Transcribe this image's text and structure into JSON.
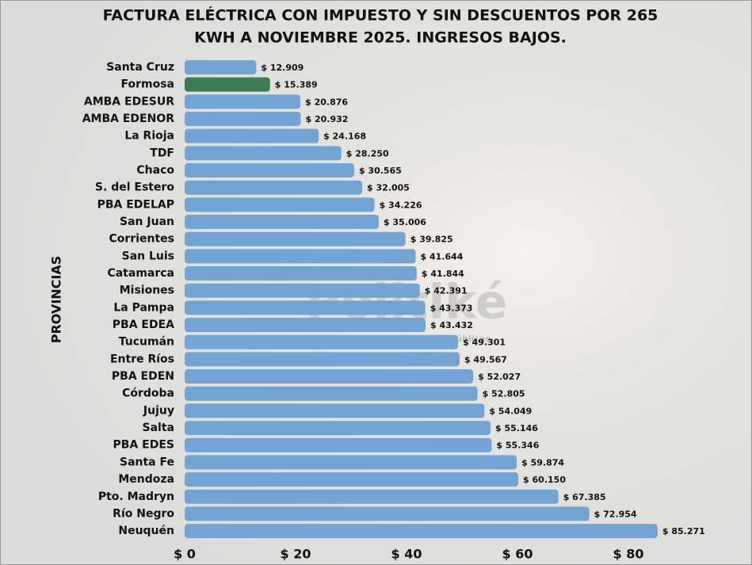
{
  "chart_data": {
    "type": "hbar",
    "title": [
      "FACTURA ELÉCTRICA CON IMPUESTO Y SIN DESCUENTOS POR 265",
      "KWH A NOVIEMBRE 2025. INGRESOS BAJOS."
    ],
    "y_label": "PROVINCIAS",
    "watermark": [
      "Politiké",
      "Observatorio de políticas públicas"
    ],
    "categories": [
      "Santa Cruz",
      "Formosa",
      "AMBA EDESUR",
      "AMBA EDENOR",
      "La Rioja",
      "TDF",
      "Chaco",
      "S. del Estero",
      "PBA EDELAP",
      "San Juan",
      "Corrientes",
      "San Luis",
      "Catamarca",
      "Misiones",
      "La Pampa",
      "PBA EDEA",
      "Tucumán",
      "Entre Ríos",
      "PBA EDEN",
      "Córdoba",
      "Jujuy",
      "Salta",
      "PBA EDES",
      "Santa Fe",
      "Mendoza",
      "Pto. Madryn",
      "Río Negro",
      "Neuquén"
    ],
    "values": [
      12.909,
      15.389,
      20.876,
      20.932,
      24.168,
      28.25,
      30.565,
      32.005,
      34.226,
      35.006,
      39.825,
      41.644,
      41.844,
      42.391,
      43.373,
      43.432,
      49.301,
      49.567,
      52.027,
      52.805,
      54.049,
      55.146,
      55.346,
      59.874,
      60.15,
      67.385,
      72.954,
      85.271
    ],
    "value_labels": [
      "$ 12.909",
      "$ 15.389",
      "$ 20.876",
      "$ 20.932",
      "$ 24.168",
      "$ 28.250",
      "$ 30.565",
      "$ 32.005",
      "$ 34.226",
      "$ 35.006",
      "$ 39.825",
      "$ 41.644",
      "$ 41.844",
      "$ 42.391",
      "$ 43.373",
      "$ 43.432",
      "$ 49.301",
      "$ 49.567",
      "$ 52.027",
      "$ 52.805",
      "$ 54.049",
      "$ 55.146",
      "$ 55.346",
      "$ 59.874",
      "$ 60.150",
      "$ 67.385",
      "$ 72.954",
      "$ 85.271"
    ],
    "colors": [
      "#74a4d4",
      "#3f7a57",
      "#74a4d4",
      "#74a4d4",
      "#74a4d4",
      "#74a4d4",
      "#74a4d4",
      "#74a4d4",
      "#74a4d4",
      "#74a4d4",
      "#74a4d4",
      "#74a4d4",
      "#74a4d4",
      "#74a4d4",
      "#74a4d4",
      "#74a4d4",
      "#74a4d4",
      "#74a4d4",
      "#74a4d4",
      "#74a4d4",
      "#74a4d4",
      "#74a4d4",
      "#74a4d4",
      "#74a4d4",
      "#74a4d4",
      "#74a4d4",
      "#74a4d4",
      "#74a4d4"
    ],
    "xlim": [
      0,
      90
    ],
    "xticks": [
      {
        "value": 0,
        "label": "$ 0"
      },
      {
        "value": 20,
        "label": "$ 20"
      },
      {
        "value": 40,
        "label": "$ 40"
      },
      {
        "value": 60,
        "label": "$ 60"
      },
      {
        "value": 80,
        "label": "$ 80"
      }
    ]
  }
}
